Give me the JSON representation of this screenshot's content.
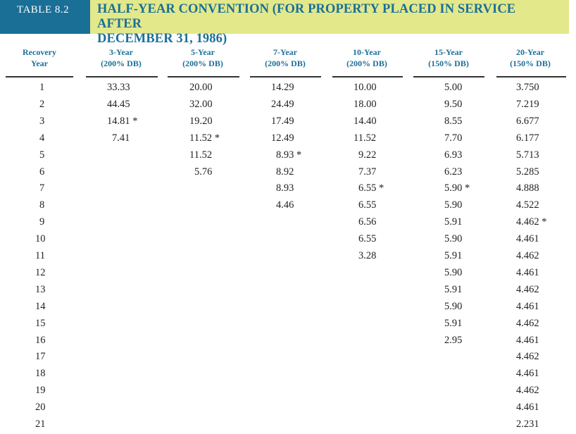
{
  "header": {
    "table_label": "TABLE 8.2",
    "title_line1": "HALF-YEAR CONVENTION (FOR PROPERTY PLACED IN SERVICE AFTER",
    "title_line2": "DECEMBER 31, 1986)"
  },
  "columns": [
    {
      "line1": "Recovery",
      "line2": "Year"
    },
    {
      "line1": "3-Year",
      "line2": "(200% DB)"
    },
    {
      "line1": "5-Year",
      "line2": "(200% DB)"
    },
    {
      "line1": "7-Year",
      "line2": "(200% DB)"
    },
    {
      "line1": "10-Year",
      "line2": "(200% DB)"
    },
    {
      "line1": "15-Year",
      "line2": "(150% DB)"
    },
    {
      "line1": "20-Year",
      "line2": "(150% DB)"
    }
  ],
  "rows": [
    [
      "1",
      "33.33",
      "20.00",
      "14.29",
      "10.00",
      "5.00",
      "3.750"
    ],
    [
      "2",
      "44.45",
      "32.00",
      "24.49",
      "18.00",
      "9.50",
      "7.219"
    ],
    [
      "3",
      "14.81 *",
      "19.20",
      "17.49",
      "14.40",
      "8.55",
      "6.677"
    ],
    [
      "4",
      "7.41",
      "11.52 *",
      "12.49",
      "11.52",
      "7.70",
      "6.177"
    ],
    [
      "5",
      "",
      "11.52",
      "8.93 *",
      "9.22",
      "6.93",
      "5.713"
    ],
    [
      "6",
      "",
      "5.76",
      "8.92",
      "7.37",
      "6.23",
      "5.285"
    ],
    [
      "7",
      "",
      "",
      "8.93",
      "6.55 *",
      "5.90 *",
      "4.888"
    ],
    [
      "8",
      "",
      "",
      "4.46",
      "6.55",
      "5.90",
      "4.522"
    ],
    [
      "9",
      "",
      "",
      "",
      "6.56",
      "5.91",
      "4.462 *"
    ],
    [
      "10",
      "",
      "",
      "",
      "6.55",
      "5.90",
      "4.461"
    ],
    [
      "11",
      "",
      "",
      "",
      "3.28",
      "5.91",
      "4.462"
    ],
    [
      "12",
      "",
      "",
      "",
      "",
      "5.90",
      "4.461"
    ],
    [
      "13",
      "",
      "",
      "",
      "",
      "5.91",
      "4.462"
    ],
    [
      "14",
      "",
      "",
      "",
      "",
      "5.90",
      "4.461"
    ],
    [
      "15",
      "",
      "",
      "",
      "",
      "5.91",
      "4.462"
    ],
    [
      "16",
      "",
      "",
      "",
      "",
      "2.95",
      "4.461"
    ],
    [
      "17",
      "",
      "",
      "",
      "",
      "",
      "4.462"
    ],
    [
      "18",
      "",
      "",
      "",
      "",
      "",
      "4.461"
    ],
    [
      "19",
      "",
      "",
      "",
      "",
      "",
      "4.462"
    ],
    [
      "20",
      "",
      "",
      "",
      "",
      "",
      "4.461"
    ],
    [
      "21",
      "",
      "",
      "",
      "",
      "",
      "2.231"
    ]
  ],
  "colors": {
    "header_band": "#e3e88a",
    "label_box": "#1a6f97",
    "accent_text": "#1a6f97"
  }
}
